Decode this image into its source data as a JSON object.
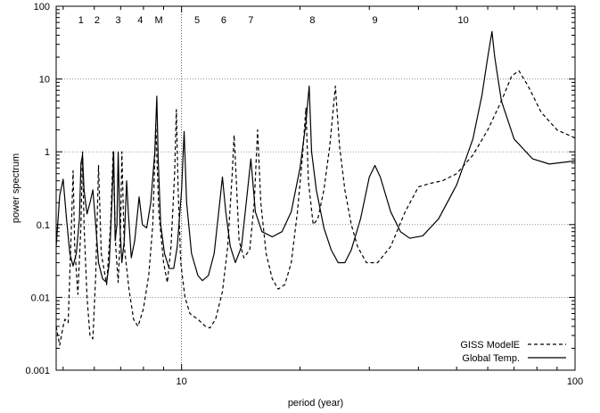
{
  "chart_data": {
    "type": "line",
    "xscale": "log",
    "yscale": "log",
    "xlabel": "period (year)",
    "ylabel": "power spectrum",
    "xlim": [
      4.8,
      100
    ],
    "ylim": [
      0.001,
      100
    ],
    "x_tick_labels": [
      {
        "value": 10,
        "label": "10"
      },
      {
        "value": 100,
        "label": "100"
      }
    ],
    "y_tick_labels": [
      {
        "value": 0.001,
        "label": "0.001"
      },
      {
        "value": 0.01,
        "label": "0.01"
      },
      {
        "value": 0.1,
        "label": "0.1"
      },
      {
        "value": 1,
        "label": "1"
      },
      {
        "value": 10,
        "label": "10"
      },
      {
        "value": 100,
        "label": "100"
      }
    ],
    "grid": true,
    "legend_position": "bottom-right",
    "reference_line": {
      "x": 10,
      "style": "dotted"
    },
    "peak_labels": [
      {
        "label": "1",
        "x": 5.55
      },
      {
        "label": "2",
        "x": 6.1
      },
      {
        "label": "3",
        "x": 6.9
      },
      {
        "label": "4",
        "x": 7.85
      },
      {
        "label": "M",
        "x": 8.75
      },
      {
        "label": "5",
        "x": 10.95
      },
      {
        "label": "6",
        "x": 12.8
      },
      {
        "label": "7",
        "x": 15.0
      },
      {
        "label": "8",
        "x": 21.5
      },
      {
        "label": "9",
        "x": 31.0
      },
      {
        "label": "10",
        "x": 52.0
      }
    ],
    "series": [
      {
        "name": "GISS ModelE",
        "style": "dashed",
        "points": [
          [
            4.8,
            0.004
          ],
          [
            4.9,
            0.0022
          ],
          [
            5.0,
            0.004
          ],
          [
            5.05,
            0.005
          ],
          [
            5.15,
            0.0045
          ],
          [
            5.25,
            0.1
          ],
          [
            5.3,
            0.55
          ],
          [
            5.35,
            0.05
          ],
          [
            5.45,
            0.011
          ],
          [
            5.55,
            0.1
          ],
          [
            5.6,
            1.0
          ],
          [
            5.65,
            0.1
          ],
          [
            5.75,
            0.01
          ],
          [
            5.85,
            0.003
          ],
          [
            5.95,
            0.0027
          ],
          [
            6.05,
            0.02
          ],
          [
            6.15,
            0.65
          ],
          [
            6.25,
            0.04
          ],
          [
            6.45,
            0.015
          ],
          [
            6.6,
            0.1
          ],
          [
            6.7,
            1.0
          ],
          [
            6.8,
            0.05
          ],
          [
            6.9,
            0.016
          ],
          [
            7.0,
            0.1
          ],
          [
            7.05,
            1.0
          ],
          [
            7.15,
            0.05
          ],
          [
            7.35,
            0.013
          ],
          [
            7.55,
            0.005
          ],
          [
            7.75,
            0.004
          ],
          [
            8.0,
            0.007
          ],
          [
            8.25,
            0.02
          ],
          [
            8.45,
            0.1
          ],
          [
            8.6,
            2.4
          ],
          [
            8.75,
            0.15
          ],
          [
            9.0,
            0.03
          ],
          [
            9.2,
            0.016
          ],
          [
            9.4,
            0.05
          ],
          [
            9.6,
            0.5
          ],
          [
            9.7,
            3.8
          ],
          [
            9.8,
            0.3
          ],
          [
            9.95,
            0.03
          ],
          [
            10.2,
            0.01
          ],
          [
            10.5,
            0.006
          ],
          [
            11.0,
            0.005
          ],
          [
            11.5,
            0.004
          ],
          [
            11.8,
            0.0038
          ],
          [
            12.2,
            0.005
          ],
          [
            12.7,
            0.012
          ],
          [
            13.1,
            0.05
          ],
          [
            13.45,
            0.5
          ],
          [
            13.6,
            1.7
          ],
          [
            13.75,
            0.5
          ],
          [
            14.0,
            0.06
          ],
          [
            14.4,
            0.035
          ],
          [
            14.9,
            0.045
          ],
          [
            15.3,
            0.2
          ],
          [
            15.6,
            2.0
          ],
          [
            15.9,
            0.2
          ],
          [
            16.4,
            0.04
          ],
          [
            17.0,
            0.018
          ],
          [
            17.6,
            0.013
          ],
          [
            18.3,
            0.015
          ],
          [
            19.0,
            0.03
          ],
          [
            19.7,
            0.15
          ],
          [
            20.3,
            0.9
          ],
          [
            20.7,
            4.0
          ],
          [
            21.0,
            0.4
          ],
          [
            21.6,
            0.1
          ],
          [
            22.2,
            0.12
          ],
          [
            23.0,
            0.3
          ],
          [
            23.8,
            1.2
          ],
          [
            24.6,
            8.0
          ],
          [
            25.2,
            1.2
          ],
          [
            26.0,
            0.3
          ],
          [
            27.0,
            0.1
          ],
          [
            28.0,
            0.05
          ],
          [
            29.5,
            0.03
          ],
          [
            31.5,
            0.03
          ],
          [
            34.0,
            0.05
          ],
          [
            37.0,
            0.15
          ],
          [
            40.0,
            0.33
          ],
          [
            43.0,
            0.37
          ],
          [
            46.0,
            0.4
          ],
          [
            50.0,
            0.5
          ],
          [
            55.0,
            0.9
          ],
          [
            60.0,
            2.0
          ],
          [
            65.0,
            5.0
          ],
          [
            69.0,
            11.0
          ],
          [
            72.0,
            13.0
          ],
          [
            76.0,
            8.0
          ],
          [
            82.0,
            3.5
          ],
          [
            90.0,
            2.0
          ],
          [
            100.0,
            1.55
          ]
        ]
      },
      {
        "name": "Global Temp.",
        "style": "solid",
        "points": [
          [
            4.8,
            0.05
          ],
          [
            4.9,
            0.25
          ],
          [
            5.0,
            0.42
          ],
          [
            5.1,
            0.12
          ],
          [
            5.2,
            0.04
          ],
          [
            5.3,
            0.027
          ],
          [
            5.4,
            0.04
          ],
          [
            5.5,
            0.12
          ],
          [
            5.55,
            0.7
          ],
          [
            5.6,
            0.9
          ],
          [
            5.65,
            0.3
          ],
          [
            5.75,
            0.14
          ],
          [
            5.85,
            0.2
          ],
          [
            5.95,
            0.3
          ],
          [
            6.05,
            0.1
          ],
          [
            6.15,
            0.03
          ],
          [
            6.3,
            0.018
          ],
          [
            6.45,
            0.016
          ],
          [
            6.55,
            0.03
          ],
          [
            6.65,
            0.2
          ],
          [
            6.72,
            1.0
          ],
          [
            6.78,
            0.06
          ],
          [
            6.85,
            0.1
          ],
          [
            6.9,
            1.0
          ],
          [
            6.97,
            0.1
          ],
          [
            7.05,
            0.03
          ],
          [
            7.15,
            0.06
          ],
          [
            7.25,
            0.4
          ],
          [
            7.32,
            0.15
          ],
          [
            7.45,
            0.035
          ],
          [
            7.6,
            0.06
          ],
          [
            7.8,
            0.24
          ],
          [
            7.95,
            0.1
          ],
          [
            8.15,
            0.09
          ],
          [
            8.35,
            0.2
          ],
          [
            8.55,
            1.0
          ],
          [
            8.65,
            5.8
          ],
          [
            8.72,
            0.8
          ],
          [
            8.85,
            0.1
          ],
          [
            9.05,
            0.04
          ],
          [
            9.3,
            0.025
          ],
          [
            9.55,
            0.025
          ],
          [
            9.75,
            0.05
          ],
          [
            10.0,
            0.3
          ],
          [
            10.15,
            1.9
          ],
          [
            10.3,
            0.2
          ],
          [
            10.6,
            0.04
          ],
          [
            11.0,
            0.02
          ],
          [
            11.3,
            0.017
          ],
          [
            11.7,
            0.02
          ],
          [
            12.1,
            0.04
          ],
          [
            12.5,
            0.2
          ],
          [
            12.7,
            0.45
          ],
          [
            12.95,
            0.15
          ],
          [
            13.3,
            0.05
          ],
          [
            13.7,
            0.03
          ],
          [
            14.2,
            0.05
          ],
          [
            14.6,
            0.2
          ],
          [
            15.0,
            0.8
          ],
          [
            15.4,
            0.15
          ],
          [
            16.0,
            0.08
          ],
          [
            17.0,
            0.068
          ],
          [
            18.0,
            0.08
          ],
          [
            19.0,
            0.15
          ],
          [
            20.0,
            0.6
          ],
          [
            20.7,
            2.5
          ],
          [
            21.1,
            8.0
          ],
          [
            21.4,
            1.0
          ],
          [
            22.0,
            0.3
          ],
          [
            23.0,
            0.09
          ],
          [
            24.0,
            0.045
          ],
          [
            25.0,
            0.03
          ],
          [
            26.0,
            0.03
          ],
          [
            27.0,
            0.045
          ],
          [
            28.5,
            0.12
          ],
          [
            30.0,
            0.45
          ],
          [
            31.0,
            0.65
          ],
          [
            32.0,
            0.45
          ],
          [
            34.0,
            0.15
          ],
          [
            36.0,
            0.08
          ],
          [
            38.0,
            0.065
          ],
          [
            41.0,
            0.07
          ],
          [
            45.0,
            0.12
          ],
          [
            50.0,
            0.35
          ],
          [
            55.0,
            1.5
          ],
          [
            58.0,
            6.0
          ],
          [
            60.0,
            20.0
          ],
          [
            61.5,
            45.0
          ],
          [
            62.5,
            20.0
          ],
          [
            65.0,
            5.0
          ],
          [
            70.0,
            1.5
          ],
          [
            78.0,
            0.8
          ],
          [
            86.0,
            0.68
          ],
          [
            100.0,
            0.75
          ]
        ]
      }
    ]
  }
}
